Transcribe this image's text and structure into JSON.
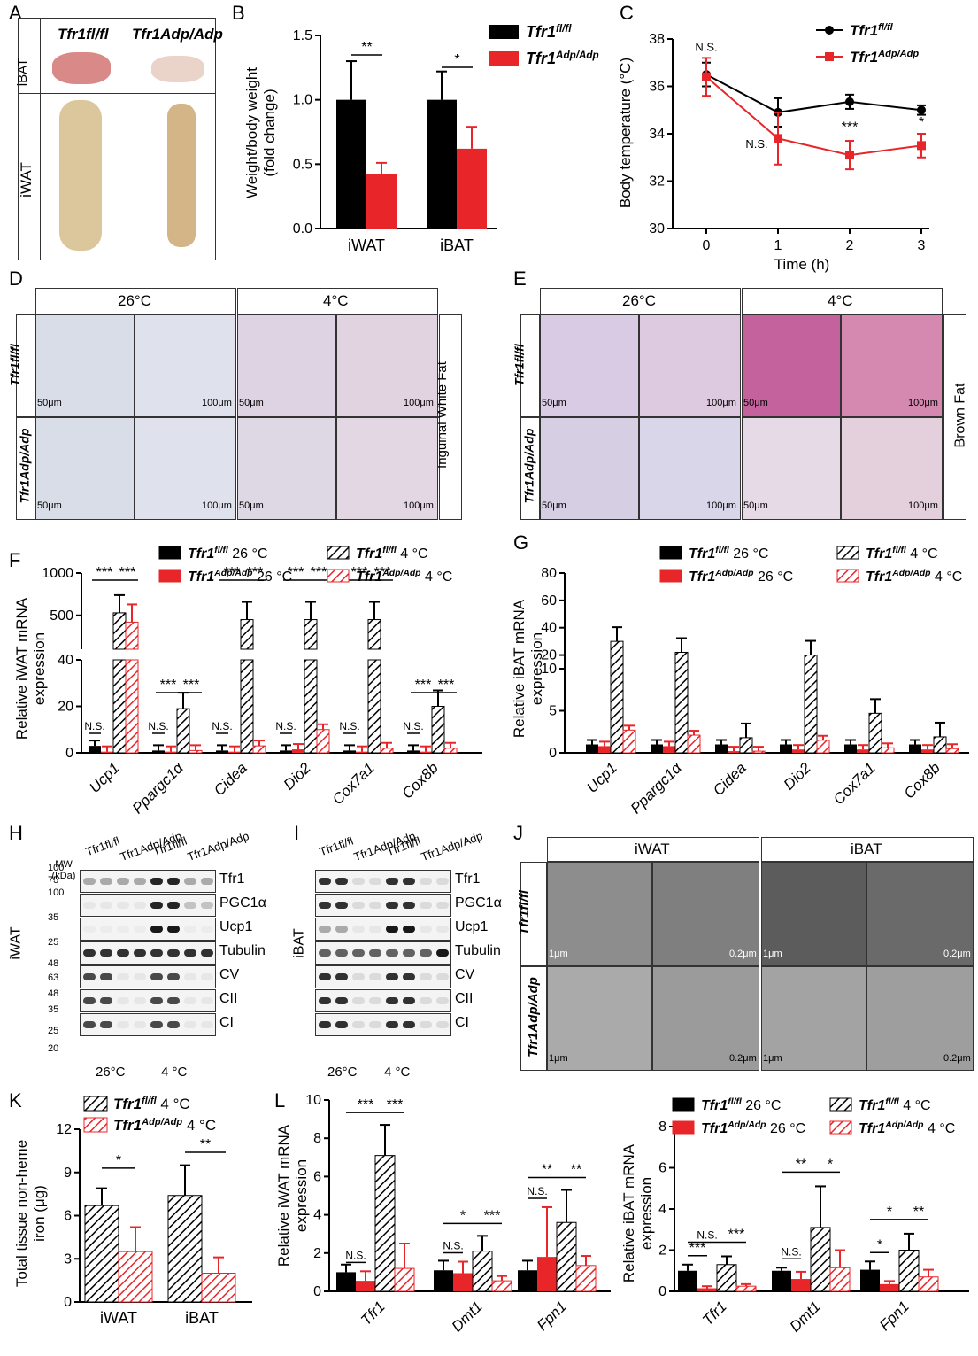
{
  "panels": {
    "A": "A",
    "B": "B",
    "C": "C",
    "D": "D",
    "E": "E",
    "F": "F",
    "G": "G",
    "H": "H",
    "I": "I",
    "J": "J",
    "K": "K",
    "L": "L"
  },
  "genotypes": {
    "fl": "Tfr1fl/fl",
    "adp": "Tfr1Adp/Adp"
  },
  "A": {
    "row1": "iBAT",
    "row2": "iWAT",
    "col1": "Tfr1fl/fl",
    "col2": "Tfr1Adp/Adp"
  },
  "temps": {
    "warm": "26°C",
    "cold": "4°C"
  },
  "D": {
    "side": "Inguinal White Fat",
    "scale1": "50μm",
    "scale2": "100μm"
  },
  "E": {
    "side": "Brown Fat",
    "scale1": "50μm",
    "scale2": "100μm"
  },
  "H": {
    "mw": "MW (kDa)",
    "tissue": "iWAT",
    "cond1": "26°C",
    "cond2": "4 °C",
    "markers": [
      "100",
      "75",
      "100",
      "35",
      "25",
      "48",
      "63",
      "48",
      "35",
      "25",
      "20"
    ],
    "proteins": [
      "Tfr1",
      "PGC1α",
      "Ucp1",
      "Tubulin",
      "CV",
      "CII",
      "CI"
    ]
  },
  "I": {
    "tissue": "iBAT",
    "cond1": "26°C",
    "cond2": "4 °C",
    "proteins": [
      "Tfr1",
      "PGC1α",
      "Ucp1",
      "Tubulin",
      "CV",
      "CII",
      "CI"
    ]
  },
  "J": {
    "col1": "iWAT",
    "col2": "iBAT",
    "s1": "1μm",
    "s2": "0.2μm"
  },
  "legend4": {
    "a": "Tfr1fl/fl 26 °C",
    "b": "Tfr1Adp/Adp 26 °C",
    "c": "Tfr1fl/fl 4 °C",
    "d": "Tfr1Adp/Adp 4 °C"
  },
  "legendK": {
    "c": "Tfr1fl/fl 4 °C",
    "d": "Tfr1Adp/Adp 4 °C"
  },
  "chart_data": [
    {
      "panel": "B",
      "type": "bar",
      "categories": [
        "iWAT",
        "iBAT"
      ],
      "ylabel": "Weight/body weight (fold change)",
      "ylim": [
        0,
        1.5
      ],
      "yticks": [
        "0.0",
        "0.5",
        "1.0",
        "1.5"
      ],
      "series": [
        {
          "name": "Tfr1fl/fl",
          "values": [
            1.0,
            1.0
          ],
          "err": [
            0.3,
            0.22
          ],
          "color": "#000000"
        },
        {
          "name": "Tfr1Adp/Adp",
          "values": [
            0.42,
            0.62
          ],
          "err": [
            0.09,
            0.17
          ],
          "color": "#e8262a"
        }
      ],
      "sig": [
        "**",
        "*"
      ]
    },
    {
      "panel": "C",
      "type": "line",
      "x": [
        0,
        1,
        2,
        3
      ],
      "xlabel": "Time (h)",
      "ylabel": "Body temperature (°C)",
      "ylim": [
        30,
        38
      ],
      "yticks": [
        "30",
        "32",
        "34",
        "36",
        "38"
      ],
      "series": [
        {
          "name": "Tfr1fl/fl",
          "values": [
            36.5,
            34.9,
            35.35,
            35.0
          ],
          "err": [
            0.5,
            0.6,
            0.3,
            0.2
          ],
          "color": "#000000"
        },
        {
          "name": "Tfr1Adp/Adp",
          "values": [
            36.4,
            33.8,
            33.1,
            33.5
          ],
          "err": [
            0.8,
            1.1,
            0.6,
            0.5
          ],
          "color": "#e8262a"
        }
      ],
      "annotations": [
        "N.S.",
        "N.S.",
        "***",
        "*"
      ]
    },
    {
      "panel": "F",
      "type": "bar",
      "categories": [
        "Ucp1",
        "Ppargc1α",
        "Cidea",
        "Dio2",
        "Cox7a1",
        "Cox8b"
      ],
      "ylabel": "Relative iWAT mRNA expression",
      "yticks": [
        "0",
        "20",
        "40",
        "500",
        "1000"
      ],
      "series": [
        {
          "name": "Tfr1fl/fl 26 °C",
          "values": [
            3,
            1,
            1,
            1,
            1,
            1
          ]
        },
        {
          "name": "Tfr1Adp/Adp 26 °C",
          "values": [
            0.5,
            0.5,
            0.5,
            1.5,
            0.5,
            0.5
          ]
        },
        {
          "name": "Tfr1fl/fl 4 °C",
          "values": [
            530,
            19,
            450,
            450,
            450,
            20
          ]
        },
        {
          "name": "Tfr1Adp/Adp 4 °C",
          "values": [
            420,
            1,
            3,
            10,
            2,
            2
          ]
        }
      ],
      "sig": [
        "N.S.",
        "***",
        "***"
      ]
    },
    {
      "panel": "G",
      "type": "bar",
      "categories": [
        "Ucp1",
        "Ppargc1α",
        "Cidea",
        "Dio2",
        "Cox7a1",
        "Cox8b"
      ],
      "ylabel": "Relative iBAT mRNA expression",
      "yticks": [
        "0",
        "5",
        "10",
        "20",
        "40",
        "60",
        "80"
      ],
      "series": [
        {
          "name": "Tfr1fl/fl 26 °C",
          "values": [
            1,
            1,
            1,
            1,
            1,
            1
          ]
        },
        {
          "name": "Tfr1Adp/Adp 26 °C",
          "values": [
            0.8,
            0.8,
            0.2,
            0.4,
            0.4,
            0.4
          ]
        },
        {
          "name": "Tfr1fl/fl 4 °C",
          "values": [
            30,
            22,
            1.8,
            20,
            4.7,
            1.9
          ]
        },
        {
          "name": "Tfr1Adp/Adp 4 °C",
          "values": [
            2.7,
            2.1,
            0.2,
            1.5,
            0.6,
            0.5
          ]
        }
      ]
    },
    {
      "panel": "K",
      "type": "bar",
      "categories": [
        "iWAT",
        "iBAT"
      ],
      "ylabel": "Total tissue non-heme iron (μg)",
      "ylim": [
        0,
        12
      ],
      "yticks": [
        "0",
        "3",
        "6",
        "9",
        "12"
      ],
      "series": [
        {
          "name": "Tfr1fl/fl 4 °C",
          "values": [
            6.7,
            7.4
          ],
          "err": [
            1.2,
            2.1
          ]
        },
        {
          "name": "Tfr1Adp/Adp 4 °C",
          "values": [
            3.5,
            2.0
          ],
          "err": [
            1.7,
            1.1
          ]
        }
      ],
      "sig": [
        "*",
        "**"
      ]
    },
    {
      "panel": "L1",
      "type": "bar",
      "categories": [
        "Tfr1",
        "Dmt1",
        "Fpn1"
      ],
      "ylabel": "Relative iWAT mRNA expression",
      "ylim": [
        0,
        10
      ],
      "yticks": [
        "0",
        "2",
        "4",
        "6",
        "8",
        "10"
      ],
      "series": [
        {
          "name": "Tfr1fl/fl 26 °C",
          "values": [
            1.0,
            1.1,
            1.1
          ],
          "err": [
            0.4,
            0.5,
            0.5
          ]
        },
        {
          "name": "Tfr1Adp/Adp 26 °C",
          "values": [
            0.55,
            0.95,
            1.8
          ],
          "err": [
            0.5,
            0.6,
            2.6
          ]
        },
        {
          "name": "Tfr1fl/fl 4 °C",
          "values": [
            7.1,
            2.1,
            3.6
          ],
          "err": [
            1.6,
            0.8,
            1.7
          ]
        },
        {
          "name": "Tfr1Adp/Adp 4 °C",
          "values": [
            1.2,
            0.55,
            1.35
          ],
          "err": [
            1.3,
            0.25,
            0.5
          ]
        }
      ]
    },
    {
      "panel": "L2",
      "type": "bar",
      "categories": [
        "Tfr1",
        "Dmt1",
        "Fpn1"
      ],
      "ylabel": "Relative iBAT mRNA expression",
      "ylim": [
        0,
        8
      ],
      "yticks": [
        "0",
        "2",
        "4",
        "6",
        "8"
      ],
      "series": [
        {
          "name": "Tfr1fl/fl 26 °C",
          "values": [
            1.0,
            1.0,
            1.05
          ],
          "err": [
            0.3,
            0.15,
            0.4
          ]
        },
        {
          "name": "Tfr1Adp/Adp 26 °C",
          "values": [
            0.15,
            0.6,
            0.35
          ],
          "err": [
            0.1,
            0.35,
            0.15
          ]
        },
        {
          "name": "Tfr1fl/fl 4 °C",
          "values": [
            1.3,
            3.1,
            2.0
          ],
          "err": [
            0.4,
            2.0,
            0.8
          ]
        },
        {
          "name": "Tfr1Adp/Adp 4 °C",
          "values": [
            0.25,
            1.15,
            0.7
          ],
          "err": [
            0.1,
            0.85,
            0.35
          ]
        }
      ]
    }
  ]
}
